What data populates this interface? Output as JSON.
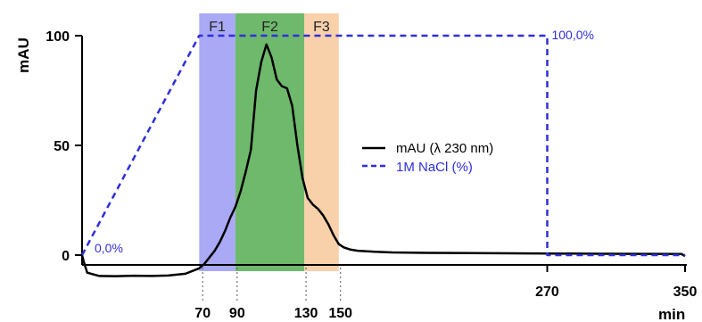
{
  "chart_data": {
    "type": "line",
    "ylabel": "mAU",
    "xlabel": "min",
    "xlim": [
      0,
      350
    ],
    "ylim": [
      -10,
      100
    ],
    "x_ticks": [
      "70",
      "90",
      "130",
      "150",
      "270",
      "350"
    ],
    "x_tick_values": [
      70,
      90,
      130,
      150,
      270,
      350
    ],
    "y_ticks": [
      "0",
      "50",
      "100"
    ],
    "y_tick_values": [
      0,
      50,
      100
    ],
    "bands": [
      {
        "label": "F1",
        "from": 68,
        "to": 89,
        "color": "#8c8cf2"
      },
      {
        "label": "F2",
        "from": 89,
        "to": 129,
        "color": "#3da23a"
      },
      {
        "label": "F3",
        "from": 129,
        "to": 149,
        "color": "#f6c08e"
      }
    ],
    "series": [
      {
        "name": "mAU (λ 230 nm)",
        "style": "solid",
        "color": "#000000",
        "x": [
          0,
          1,
          3,
          10,
          20,
          30,
          40,
          50,
          60,
          68,
          71,
          74,
          77,
          80,
          83,
          86,
          89,
          92,
          95,
          98,
          101,
          104,
          107,
          110,
          113,
          116,
          119,
          122,
          125,
          128,
          131,
          134,
          137,
          140,
          143,
          146,
          149,
          152,
          156,
          160,
          170,
          180,
          200,
          250,
          300,
          348,
          350
        ],
        "y": [
          0,
          -3,
          -8,
          -9.5,
          -9.6,
          -9.4,
          -9.5,
          -9.3,
          -8.5,
          -6,
          -4,
          -1,
          2,
          6,
          11,
          17,
          22,
          29,
          38,
          48,
          75,
          88,
          96,
          90,
          80,
          77,
          76,
          68,
          50,
          35,
          26,
          23,
          21,
          18,
          14,
          9,
          5,
          3.5,
          2.5,
          2,
          1.5,
          1.2,
          1,
          0.8,
          0.6,
          0.5,
          -0.5
        ]
      },
      {
        "name": "1M NaCl (%)",
        "style": "dashed",
        "color": "#2f2fdc",
        "x": [
          0,
          68,
          270,
          270,
          350
        ],
        "y": [
          0,
          100,
          100,
          0,
          0
        ]
      }
    ],
    "annotations": [
      {
        "text": "0,0%",
        "x": 0,
        "y": 0
      },
      {
        "text": "100,0%",
        "x": 270,
        "y": 100
      }
    ],
    "legend_position": "right-center"
  }
}
